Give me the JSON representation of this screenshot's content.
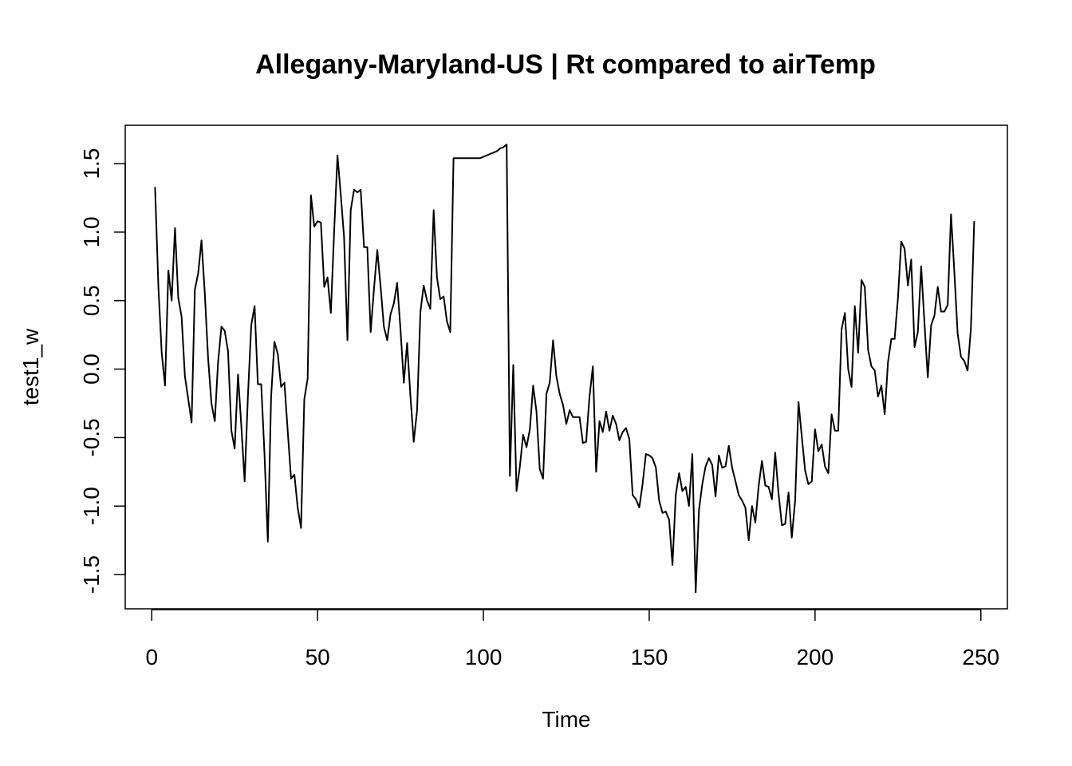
{
  "chart_data": {
    "type": "line",
    "title": "Allegany-Maryland-US | Rt compared to airTemp",
    "xlabel": "Time",
    "ylabel": "test1_w",
    "xlim": [
      -8,
      258
    ],
    "ylim": [
      -1.75,
      1.78
    ],
    "x_ticks": [
      0,
      50,
      100,
      150,
      200,
      250
    ],
    "y_ticks": [
      -1.5,
      -1.0,
      -0.5,
      0.0,
      0.5,
      1.0,
      1.5
    ],
    "x_tick_labels": [
      "0",
      "50",
      "100",
      "150",
      "200",
      "250"
    ],
    "y_tick_labels": [
      "-1.5",
      "-1.0",
      "-0.5",
      "0.0",
      "0.5",
      "1.0",
      "1.5"
    ],
    "grid": false,
    "series": [
      {
        "x_start": 1,
        "values": [
          1.33,
          0.6,
          0.12,
          -0.12,
          0.72,
          0.5,
          1.03,
          0.52,
          0.38,
          -0.05,
          -0.22,
          -0.39,
          0.58,
          0.7,
          0.94,
          0.55,
          0.08,
          -0.25,
          -0.38,
          0.05,
          0.31,
          0.28,
          0.13,
          -0.45,
          -0.58,
          -0.04,
          -0.41,
          -0.82,
          -0.2,
          0.32,
          0.46,
          -0.11,
          -0.11,
          -0.62,
          -1.26,
          -0.2,
          0.2,
          0.11,
          -0.13,
          -0.1,
          -0.45,
          -0.8,
          -0.77,
          -1.01,
          -1.16,
          -0.22,
          -0.07,
          1.27,
          1.04,
          1.08,
          1.07,
          0.6,
          0.67,
          0.41,
          1.0,
          1.56,
          1.27,
          0.96,
          0.21,
          1.16,
          1.31,
          1.29,
          1.31,
          0.89,
          0.89,
          0.27,
          0.58,
          0.87,
          0.6,
          0.31,
          0.21,
          0.4,
          0.48,
          0.63,
          0.29,
          -0.1,
          0.19,
          -0.2,
          -0.53,
          -0.3,
          0.42,
          0.61,
          0.5,
          0.44,
          1.16,
          0.67,
          0.51,
          0.53,
          0.35,
          0.27,
          1.54,
          1.54,
          1.54,
          1.54,
          1.54,
          1.54,
          1.54,
          1.54,
          1.54,
          1.55,
          1.56,
          1.57,
          1.58,
          1.59,
          1.61,
          1.62,
          1.64,
          -0.78,
          0.03,
          -0.89,
          -0.71,
          -0.48,
          -0.57,
          -0.44,
          -0.12,
          -0.31,
          -0.73,
          -0.8,
          -0.18,
          -0.1,
          0.21,
          -0.05,
          -0.18,
          -0.26,
          -0.4,
          -0.3,
          -0.35,
          -0.35,
          -0.35,
          -0.54,
          -0.53,
          -0.2,
          0.02,
          -0.75,
          -0.38,
          -0.46,
          -0.31,
          -0.45,
          -0.34,
          -0.4,
          -0.52,
          -0.46,
          -0.43,
          -0.51,
          -0.92,
          -0.95,
          -1.01,
          -0.84,
          -0.62,
          -0.63,
          -0.65,
          -0.72,
          -0.96,
          -1.05,
          -1.04,
          -1.1,
          -1.43,
          -0.92,
          -0.76,
          -0.89,
          -0.86,
          -1.0,
          -0.62,
          -1.63,
          -1.03,
          -0.84,
          -0.71,
          -0.65,
          -0.7,
          -0.93,
          -0.63,
          -0.72,
          -0.71,
          -0.56,
          -0.72,
          -0.82,
          -0.92,
          -0.96,
          -1.01,
          -1.25,
          -1.0,
          -1.12,
          -0.85,
          -0.67,
          -0.85,
          -0.86,
          -0.95,
          -0.61,
          -0.91,
          -1.14,
          -1.13,
          -0.9,
          -1.23,
          -0.96,
          -0.24,
          -0.49,
          -0.74,
          -0.84,
          -0.82,
          -0.44,
          -0.6,
          -0.55,
          -0.71,
          -0.76,
          -0.33,
          -0.45,
          -0.45,
          0.29,
          0.41,
          0.0,
          -0.13,
          0.46,
          0.12,
          0.65,
          0.6,
          0.14,
          0.02,
          -0.01,
          -0.2,
          -0.12,
          -0.33,
          0.05,
          0.22,
          0.22,
          0.52,
          0.93,
          0.88,
          0.61,
          0.8,
          0.16,
          0.27,
          0.75,
          0.33,
          -0.06,
          0.32,
          0.39,
          0.6,
          0.42,
          0.42,
          0.47,
          1.13,
          0.71,
          0.26,
          0.09,
          0.06,
          -0.01,
          0.3,
          1.08
        ]
      }
    ]
  }
}
